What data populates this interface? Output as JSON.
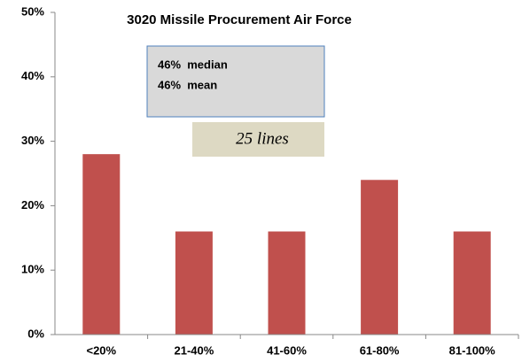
{
  "chart_data": {
    "type": "bar",
    "title": "3020 Missile Procurement Air Force",
    "categories": [
      "<20%",
      "21-40%",
      "41-60%",
      "61-80%",
      "81-100%"
    ],
    "values": [
      28,
      16,
      16,
      24,
      16
    ],
    "color": "#c0504d",
    "ylim": [
      0,
      50
    ],
    "yticks": [
      {
        "value": 0,
        "label": "0%"
      },
      {
        "value": 10,
        "label": "10%"
      },
      {
        "value": 20,
        "label": "20%"
      },
      {
        "value": 30,
        "label": "30%"
      },
      {
        "value": 40,
        "label": "40%"
      },
      {
        "value": 50,
        "label": "50%"
      }
    ],
    "grid": false,
    "annotations": [
      "46%  median",
      "46%  mean",
      "25 lines"
    ]
  }
}
